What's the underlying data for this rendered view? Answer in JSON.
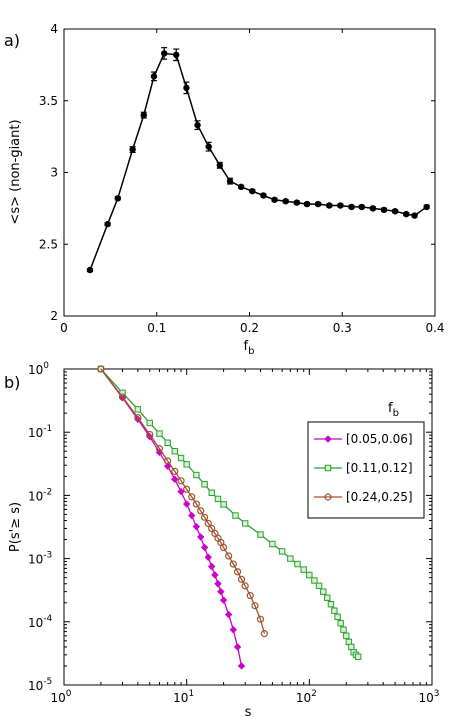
{
  "chart_data": [
    {
      "type": "line",
      "panel_label": "a)",
      "xlabel": "f",
      "xlabel_sub": "b",
      "ylabel": "<s> (non-giant)",
      "xlim": [
        0,
        0.4
      ],
      "ylim": [
        2,
        4
      ],
      "xticks": [
        0,
        0.1,
        0.2,
        0.3,
        0.4
      ],
      "xtick_labels": [
        "0",
        "0.1",
        "0.2",
        "0.3",
        "0.4"
      ],
      "yticks": [
        2,
        2.5,
        3,
        3.5,
        4
      ],
      "ytick_labels": [
        "2",
        "2.5",
        "3",
        "3.5",
        "4"
      ],
      "grid": false,
      "color": "#000000",
      "series": [
        {
          "x": [
            0.028,
            0.047,
            0.058,
            0.074,
            0.086,
            0.097,
            0.108,
            0.121,
            0.132,
            0.144,
            0.156,
            0.168,
            0.179,
            0.191,
            0.203,
            0.215,
            0.227,
            0.239,
            0.251,
            0.262,
            0.274,
            0.286,
            0.298,
            0.31,
            0.321,
            0.333,
            0.345,
            0.357,
            0.369,
            0.378,
            0.391
          ],
          "y": [
            2.32,
            2.64,
            2.82,
            3.16,
            3.4,
            3.67,
            3.83,
            3.82,
            3.59,
            3.33,
            3.18,
            3.05,
            2.94,
            2.9,
            2.87,
            2.84,
            2.81,
            2.8,
            2.79,
            2.78,
            2.78,
            2.77,
            2.77,
            2.76,
            2.76,
            2.75,
            2.74,
            2.73,
            2.71,
            2.7,
            2.76
          ],
          "err": [
            0.01,
            0.01,
            0.01,
            0.02,
            0.02,
            0.03,
            0.04,
            0.04,
            0.04,
            0.03,
            0.03,
            0.02,
            0.02,
            0.01,
            0.01,
            0.01,
            0.01,
            0.01,
            0.01,
            0.01,
            0.01,
            0.01,
            0.01,
            0.01,
            0.01,
            0.01,
            0.01,
            0.01,
            0.01,
            0.01,
            0.01
          ]
        }
      ]
    },
    {
      "type": "line",
      "panel_label": "b)",
      "xlabel": "s",
      "ylabel": "P(s'≥ s)",
      "xscale": "log",
      "yscale": "log",
      "xlim_exp": [
        0,
        3
      ],
      "ylim_exp": [
        -5,
        0
      ],
      "x_tick_base": "10",
      "x_tick_exps": [
        "0",
        "1",
        "2",
        "3"
      ],
      "y_tick_base": "10",
      "y_tick_exps": [
        "-5",
        "-4",
        "-3",
        "-2",
        "-1",
        "0"
      ],
      "grid": false,
      "legend_title": "f",
      "legend_title_sub": "b",
      "legend_position": "top-right",
      "series": [
        {
          "name": "[0.05,0.06]",
          "color": "#cc00cc",
          "marker": "diamond",
          "x": [
            2,
            3,
            4,
            5,
            6,
            7,
            8,
            9,
            10,
            11,
            12,
            13,
            14,
            15,
            16,
            17,
            18,
            19,
            20,
            22,
            24,
            26,
            28
          ],
          "y": [
            1.0,
            0.35,
            0.16,
            0.085,
            0.048,
            0.029,
            0.018,
            0.0115,
            0.0073,
            0.0048,
            0.0032,
            0.0022,
            0.0015,
            0.00105,
            0.00075,
            0.00055,
            0.0004,
            0.0003,
            0.00022,
            0.00013,
            7.5e-05,
            4e-05,
            2e-05
          ]
        },
        {
          "name": "[0.11,0.12]",
          "color": "#2ca02c",
          "marker": "square",
          "x": [
            2,
            3,
            4,
            5,
            6,
            7,
            8,
            9,
            10,
            12,
            14,
            16,
            18,
            20,
            25,
            30,
            40,
            50,
            60,
            70,
            80,
            90,
            100,
            110,
            120,
            130,
            140,
            150,
            160,
            170,
            180,
            190,
            200,
            210,
            220,
            230,
            240,
            250
          ],
          "y": [
            1.0,
            0.42,
            0.23,
            0.14,
            0.095,
            0.068,
            0.05,
            0.039,
            0.031,
            0.021,
            0.015,
            0.011,
            0.0088,
            0.0072,
            0.0048,
            0.0036,
            0.0024,
            0.0017,
            0.0013,
            0.001,
            0.00082,
            0.00067,
            0.00055,
            0.00045,
            0.00037,
            0.0003,
            0.00024,
            0.00019,
            0.00015,
            0.00012,
            9.5e-05,
            7.5e-05,
            6e-05,
            4.8e-05,
            4e-05,
            3.3e-05,
            3e-05,
            2.8e-05
          ]
        },
        {
          "name": "[0.24,0.25]",
          "color": "#a0522d",
          "marker": "circle",
          "x": [
            2,
            3,
            4,
            5,
            6,
            7,
            8,
            9,
            10,
            11,
            12,
            13,
            14,
            15,
            16,
            17,
            18,
            19,
            20,
            22,
            24,
            26,
            28,
            30,
            33,
            36,
            40,
            43
          ],
          "y": [
            1.0,
            0.36,
            0.17,
            0.092,
            0.055,
            0.035,
            0.024,
            0.017,
            0.0125,
            0.0095,
            0.0073,
            0.0057,
            0.0045,
            0.0036,
            0.003,
            0.0025,
            0.0021,
            0.0018,
            0.0015,
            0.0011,
            0.00082,
            0.00062,
            0.00047,
            0.00037,
            0.00026,
            0.00018,
            0.00011,
            6.5e-05
          ]
        }
      ]
    }
  ]
}
